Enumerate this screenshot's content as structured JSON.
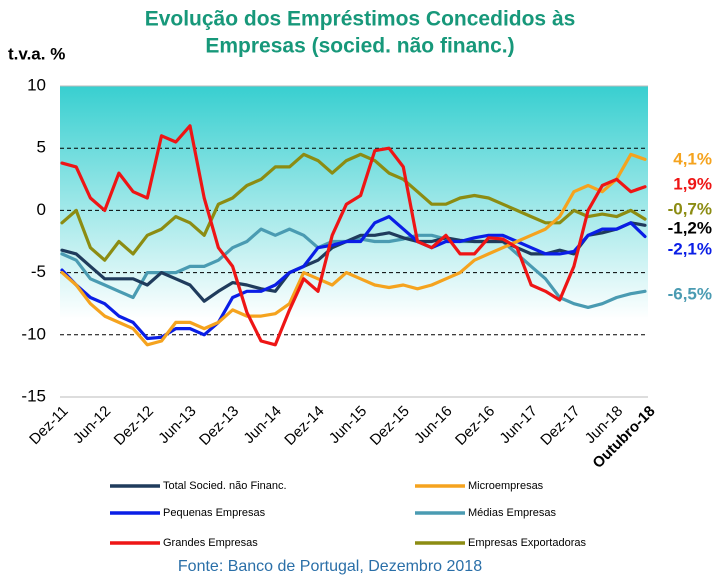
{
  "chart_data": {
    "type": "line",
    "title": [
      "Evolução dos Empréstimos Concedidos às",
      "Empresas (socied. não financ.)"
    ],
    "y_axis_label": "t.v.a. %",
    "source": "Fonte: Banco de Portugal,  Dezembro 2018",
    "categories": [
      "Dez-11",
      null,
      null,
      "Jun-12",
      null,
      null,
      "Dez-12",
      null,
      null,
      "Jun-13",
      null,
      null,
      "Dez-13",
      null,
      null,
      "Jun-14",
      null,
      null,
      "Dez-14",
      null,
      null,
      "Jun-15",
      null,
      null,
      "Dez-15",
      null,
      null,
      "Jun-16",
      null,
      null,
      "Dez-16",
      null,
      null,
      "Jun-17",
      null,
      null,
      "Dez-17",
      null,
      null,
      "Jun-18",
      null,
      "Outubro-18"
    ],
    "ylim": [
      -15,
      10
    ],
    "yticks": [
      -15,
      -10,
      -5,
      0,
      5,
      10
    ],
    "grid": true,
    "series": [
      {
        "name": "Total Socied. não Financ.",
        "color": "#1f3b5c",
        "end_label": "-1,2%",
        "values": [
          -3.2,
          -3.5,
          -4.5,
          -5.5,
          -5.5,
          -5.5,
          -6,
          -5,
          -5.5,
          -6,
          -7.3,
          -6.5,
          -5.8,
          -6,
          -6.3,
          -6.5,
          -5,
          -4.5,
          -4,
          -3,
          -2.5,
          -2,
          -2,
          -1.8,
          -2.2,
          -2.5,
          -2.5,
          -2.2,
          -2.4,
          -2.5,
          -2.5,
          -2.5,
          -3,
          -3.5,
          -3.5,
          -3.2,
          -3.5,
          -2,
          -1.8,
          -1.5,
          -1,
          -1.2
        ]
      },
      {
        "name": "Microempresas",
        "color": "#f5a31e",
        "end_label": "4,1%",
        "values": [
          -5,
          -6,
          -7.5,
          -8.5,
          -9,
          -9.5,
          -10.8,
          -10.5,
          -9,
          -9,
          -9.5,
          -9,
          -8,
          -8.5,
          -8.5,
          -8.3,
          -7.5,
          -5,
          -5.5,
          -6,
          -5,
          -5.5,
          -6,
          -6.2,
          -6,
          -6.3,
          -6,
          -5.5,
          -5,
          -4,
          -3.5,
          -3,
          -2.5,
          -2,
          -1.5,
          -0.5,
          1.5,
          2,
          1.5,
          2.5,
          4.5,
          4.1
        ]
      },
      {
        "name": "Pequenas  Empresas",
        "color": "#0a1ee6",
        "end_label": "-2,1%",
        "values": [
          -4.8,
          -6,
          -7,
          -7.5,
          -8.5,
          -9,
          -10.3,
          -10.2,
          -9.5,
          -9.5,
          -10,
          -9,
          -7,
          -6.5,
          -6.5,
          -6,
          -5,
          -4.5,
          -3,
          -2.8,
          -2.5,
          -2.5,
          -1,
          -0.5,
          -1.5,
          -2.5,
          -3,
          -2.5,
          -2.5,
          -2.2,
          -2,
          -2,
          -2.5,
          -3,
          -3.5,
          -3.5,
          -3.3,
          -2,
          -1.5,
          -1.5,
          -1,
          -2.1
        ]
      },
      {
        "name": "Médias Empresas",
        "color": "#4a9bb2",
        "end_label": "-6,5%",
        "values": [
          -3.5,
          -4,
          -5.5,
          -6,
          -6.5,
          -7,
          -5,
          -5,
          -5,
          -4.5,
          -4.5,
          -4,
          -3,
          -2.5,
          -1.5,
          -2,
          -1.5,
          -2,
          -3,
          -2.5,
          -2.5,
          -2.3,
          -2.5,
          -2.5,
          -2.3,
          -2,
          -2,
          -2.3,
          -2.5,
          -2.5,
          -2.5,
          -2.5,
          -3.5,
          -4.5,
          -5.5,
          -7,
          -7.5,
          -7.8,
          -7.5,
          -7,
          -6.7,
          -6.5
        ]
      },
      {
        "name": "Grandes Empresas",
        "color": "#ee1515",
        "end_label": "1,9%",
        "values": [
          3.8,
          3.5,
          1,
          0,
          3,
          1.5,
          1,
          6,
          5.5,
          6.8,
          1,
          -3,
          -4.5,
          -8.2,
          -10.5,
          -10.8,
          -8,
          -5.5,
          -6.5,
          -2,
          0.5,
          1.2,
          4.8,
          5,
          3.5,
          -2.5,
          -3,
          -2,
          -3.5,
          -3.5,
          -2.2,
          -2.3,
          -3,
          -6,
          -6.5,
          -7.2,
          -4.5,
          0,
          2,
          2.5,
          1.5,
          1.9
        ]
      },
      {
        "name": "Empresas Exportadoras",
        "color": "#8c8c12",
        "end_label": "-0,7%",
        "values": [
          -1,
          0,
          -3,
          -4,
          -2.5,
          -3.5,
          -2,
          -1.5,
          -0.5,
          -1,
          -2,
          0.5,
          1,
          2,
          2.5,
          3.5,
          3.5,
          4.5,
          4,
          3,
          4,
          4.5,
          4,
          3,
          2.5,
          1.5,
          0.5,
          0.5,
          1,
          1.2,
          1,
          0.5,
          0,
          -0.5,
          -1,
          -1,
          0,
          -0.5,
          -0.3,
          -0.5,
          0,
          -0.7
        ]
      }
    ]
  }
}
